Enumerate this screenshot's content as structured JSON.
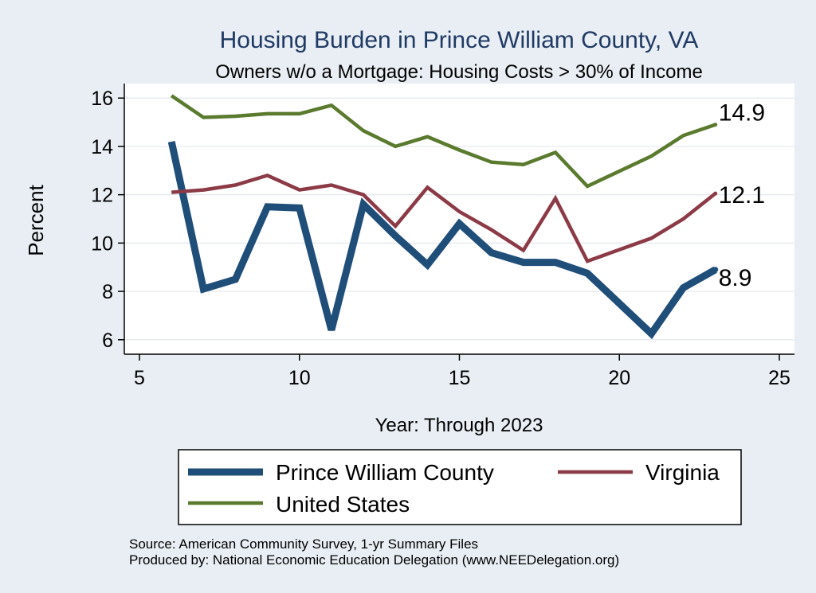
{
  "chart_data": {
    "type": "line",
    "title": "Housing Burden in Prince William County, VA",
    "subtitle": "Owners w/o a Mortgage: Housing Costs > 30% of Income",
    "xlabel": "Year: Through 2023",
    "ylabel": "Percent",
    "xlim": [
      5,
      25
    ],
    "ylim": [
      5.4,
      16.6
    ],
    "xticks": [
      5,
      10,
      15,
      20,
      25
    ],
    "yticks": [
      6,
      8,
      10,
      12,
      14,
      16
    ],
    "grid": true,
    "legend_position": "bottom",
    "series": [
      {
        "name": "Prince William County",
        "color": "#1f4e79",
        "x": [
          6,
          7,
          8,
          9,
          10,
          11,
          12,
          13,
          14,
          15,
          16,
          17,
          18,
          19,
          21,
          22,
          23
        ],
        "y": [
          14.2,
          8.1,
          8.5,
          11.5,
          11.45,
          6.4,
          11.6,
          10.3,
          9.1,
          10.8,
          9.6,
          9.2,
          9.2,
          8.75,
          6.25,
          8.15,
          8.9
        ],
        "end_label": "8.9"
      },
      {
        "name": "Virginia",
        "color": "#8b3a46",
        "x": [
          6,
          7,
          8,
          9,
          10,
          11,
          12,
          13,
          14,
          15,
          16,
          17,
          18,
          19,
          21,
          22,
          23
        ],
        "y": [
          12.1,
          12.2,
          12.4,
          12.8,
          12.2,
          12.4,
          12.0,
          10.7,
          12.3,
          11.3,
          10.55,
          9.7,
          11.85,
          9.25,
          10.2,
          11.0,
          12.05
        ],
        "end_label": "12.1"
      },
      {
        "name": "United States",
        "color": "#5a7a2e",
        "x": [
          6,
          7,
          8,
          9,
          10,
          11,
          12,
          13,
          14,
          15,
          16,
          17,
          18,
          19,
          21,
          22,
          23
        ],
        "y": [
          16.1,
          15.2,
          15.25,
          15.35,
          15.35,
          15.7,
          14.65,
          14.0,
          14.4,
          13.85,
          13.35,
          13.25,
          13.75,
          12.35,
          13.6,
          14.45,
          14.9
        ],
        "end_label": "14.9"
      }
    ]
  },
  "footer": {
    "source": "Source: American Community Survey, 1-yr Summary Files",
    "produced": "Produced by: National Economic Education Delegation (www.NEEDelegation.org)"
  }
}
